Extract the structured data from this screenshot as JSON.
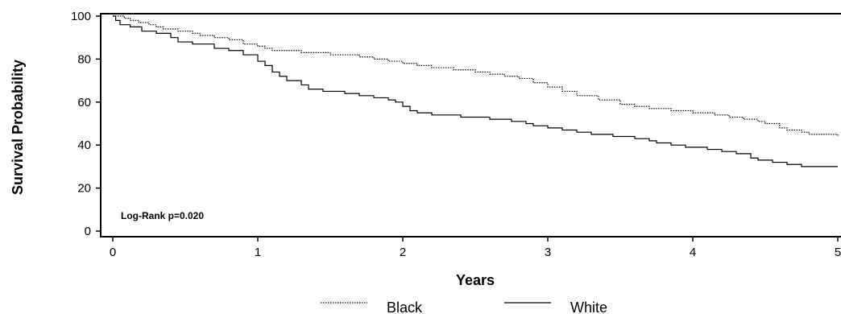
{
  "chart_data": {
    "type": "line",
    "title": "",
    "xlabel": "Years",
    "ylabel": "Survival Probability",
    "xlim": [
      0,
      5
    ],
    "ylim": [
      0,
      100
    ],
    "xticks": [
      "0",
      "1",
      "2",
      "3",
      "4",
      "5"
    ],
    "yticks": [
      "0",
      "20",
      "40",
      "60",
      "80",
      "100"
    ],
    "grid": false,
    "legend": "bottom",
    "annotation": "Log-Rank p=0.020",
    "series": [
      {
        "name": "Black",
        "style": "dotted",
        "color": "#000000",
        "points": [
          [
            0,
            100
          ],
          [
            0.05,
            100
          ],
          [
            0.08,
            99
          ],
          [
            0.12,
            98
          ],
          [
            0.18,
            97
          ],
          [
            0.25,
            96
          ],
          [
            0.3,
            95
          ],
          [
            0.35,
            94
          ],
          [
            0.45,
            93
          ],
          [
            0.55,
            92
          ],
          [
            0.6,
            91
          ],
          [
            0.7,
            90
          ],
          [
            0.8,
            89
          ],
          [
            0.9,
            87
          ],
          [
            1.0,
            86
          ],
          [
            1.05,
            85
          ],
          [
            1.1,
            84
          ],
          [
            1.2,
            84
          ],
          [
            1.3,
            83
          ],
          [
            1.4,
            83
          ],
          [
            1.5,
            82
          ],
          [
            1.6,
            82
          ],
          [
            1.7,
            81
          ],
          [
            1.8,
            80
          ],
          [
            1.9,
            79
          ],
          [
            2.0,
            78
          ],
          [
            2.1,
            77
          ],
          [
            2.2,
            76
          ],
          [
            2.35,
            75
          ],
          [
            2.5,
            74
          ],
          [
            2.6,
            73
          ],
          [
            2.7,
            72
          ],
          [
            2.8,
            71
          ],
          [
            2.9,
            69
          ],
          [
            3.0,
            67
          ],
          [
            3.1,
            65
          ],
          [
            3.2,
            63
          ],
          [
            3.35,
            61
          ],
          [
            3.5,
            59
          ],
          [
            3.6,
            58
          ],
          [
            3.7,
            57
          ],
          [
            3.85,
            56
          ],
          [
            4.0,
            55
          ],
          [
            4.15,
            54
          ],
          [
            4.25,
            53
          ],
          [
            4.35,
            52
          ],
          [
            4.45,
            51
          ],
          [
            4.5,
            50
          ],
          [
            4.6,
            48
          ],
          [
            4.65,
            47
          ],
          [
            4.75,
            46
          ],
          [
            4.8,
            45
          ],
          [
            4.95,
            45
          ],
          [
            5.0,
            44
          ]
        ]
      },
      {
        "name": "White",
        "style": "solid",
        "color": "#000000",
        "points": [
          [
            0,
            100
          ],
          [
            0.02,
            98
          ],
          [
            0.05,
            96
          ],
          [
            0.12,
            95
          ],
          [
            0.2,
            93
          ],
          [
            0.3,
            92
          ],
          [
            0.4,
            90
          ],
          [
            0.45,
            88
          ],
          [
            0.55,
            87
          ],
          [
            0.7,
            85
          ],
          [
            0.8,
            84
          ],
          [
            0.9,
            82
          ],
          [
            1.0,
            79
          ],
          [
            1.05,
            77
          ],
          [
            1.1,
            74
          ],
          [
            1.15,
            72
          ],
          [
            1.2,
            70
          ],
          [
            1.3,
            68
          ],
          [
            1.35,
            66
          ],
          [
            1.45,
            65
          ],
          [
            1.6,
            64
          ],
          [
            1.7,
            63
          ],
          [
            1.8,
            62
          ],
          [
            1.9,
            61
          ],
          [
            1.95,
            60
          ],
          [
            2.0,
            58
          ],
          [
            2.05,
            56
          ],
          [
            2.1,
            55
          ],
          [
            2.2,
            54
          ],
          [
            2.4,
            53
          ],
          [
            2.6,
            52
          ],
          [
            2.75,
            51
          ],
          [
            2.85,
            50
          ],
          [
            2.9,
            49
          ],
          [
            3.0,
            48
          ],
          [
            3.1,
            47
          ],
          [
            3.2,
            46
          ],
          [
            3.3,
            45
          ],
          [
            3.45,
            44
          ],
          [
            3.6,
            43
          ],
          [
            3.7,
            42
          ],
          [
            3.75,
            41
          ],
          [
            3.85,
            40
          ],
          [
            3.95,
            39
          ],
          [
            4.1,
            38
          ],
          [
            4.2,
            37
          ],
          [
            4.3,
            36
          ],
          [
            4.4,
            34
          ],
          [
            4.45,
            33
          ],
          [
            4.55,
            32
          ],
          [
            4.65,
            31
          ],
          [
            4.75,
            30
          ],
          [
            4.9,
            30
          ],
          [
            5.0,
            30
          ]
        ]
      }
    ]
  }
}
